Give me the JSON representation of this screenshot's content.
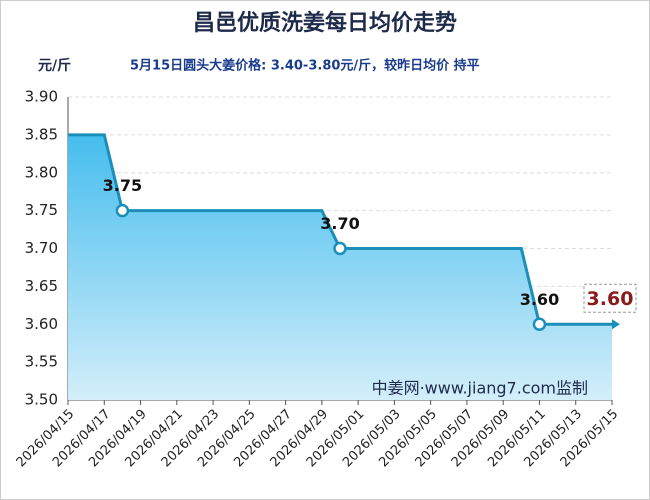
{
  "chart_data": {
    "type": "line",
    "title": "昌邑优质洗姜每日均价走势",
    "y_unit": "元/斤",
    "subtitle": "5月15日圆头大姜价格: 3.40-3.80元/斤，较昨日均价 持平",
    "watermark": "中姜网·www.jiang7.com监制",
    "x": [
      "2026/04/15",
      "2026/04/16",
      "2026/04/17",
      "2026/04/18",
      "2026/04/19",
      "2026/04/20",
      "2026/04/21",
      "2026/04/22",
      "2026/04/23",
      "2026/04/24",
      "2026/04/25",
      "2026/04/26",
      "2026/04/27",
      "2026/04/28",
      "2026/04/29",
      "2026/04/30",
      "2026/05/01",
      "2026/05/02",
      "2026/05/03",
      "2026/05/04",
      "2026/05/05",
      "2026/05/06",
      "2026/05/07",
      "2026/05/08",
      "2026/05/09",
      "2026/05/10",
      "2026/05/11",
      "2026/05/12",
      "2026/05/13",
      "2026/05/14",
      "2026/05/15"
    ],
    "values": [
      3.85,
      3.85,
      3.85,
      3.75,
      3.75,
      3.75,
      3.75,
      3.75,
      3.75,
      3.75,
      3.75,
      3.75,
      3.75,
      3.75,
      3.75,
      3.7,
      3.7,
      3.7,
      3.7,
      3.7,
      3.7,
      3.7,
      3.7,
      3.7,
      3.7,
      3.7,
      3.6,
      3.6,
      3.6,
      3.6,
      3.6
    ],
    "value_labels": [
      null,
      null,
      null,
      "3.75",
      null,
      null,
      null,
      null,
      null,
      null,
      null,
      null,
      null,
      null,
      null,
      "3.70",
      null,
      null,
      null,
      null,
      null,
      null,
      null,
      null,
      null,
      null,
      "3.60",
      null,
      null,
      null,
      null
    ],
    "latest_label": "3.60",
    "color": "#1b8fb9",
    "xticks": [
      "2026/04/15",
      "2026/04/17",
      "2026/04/19",
      "2026/04/21",
      "2026/04/23",
      "2026/04/25",
      "2026/04/27",
      "2026/04/29",
      "2026/05/01",
      "2026/05/03",
      "2026/05/05",
      "2026/05/07",
      "2026/05/09",
      "2026/05/11",
      "2026/05/13",
      "2026/05/15"
    ],
    "ylim": [
      3.5,
      3.9
    ],
    "yticks": [
      {
        "value": 3.5,
        "label": "3.50"
      },
      {
        "value": 3.55,
        "label": "3.55"
      },
      {
        "value": 3.6,
        "label": "3.60"
      },
      {
        "value": 3.65,
        "label": "3.65"
      },
      {
        "value": 3.7,
        "label": "3.70"
      },
      {
        "value": 3.75,
        "label": "3.75"
      },
      {
        "value": 3.8,
        "label": "3.80"
      },
      {
        "value": 3.85,
        "label": "3.85"
      },
      {
        "value": 3.9,
        "label": "3.90"
      }
    ],
    "grid": true
  }
}
